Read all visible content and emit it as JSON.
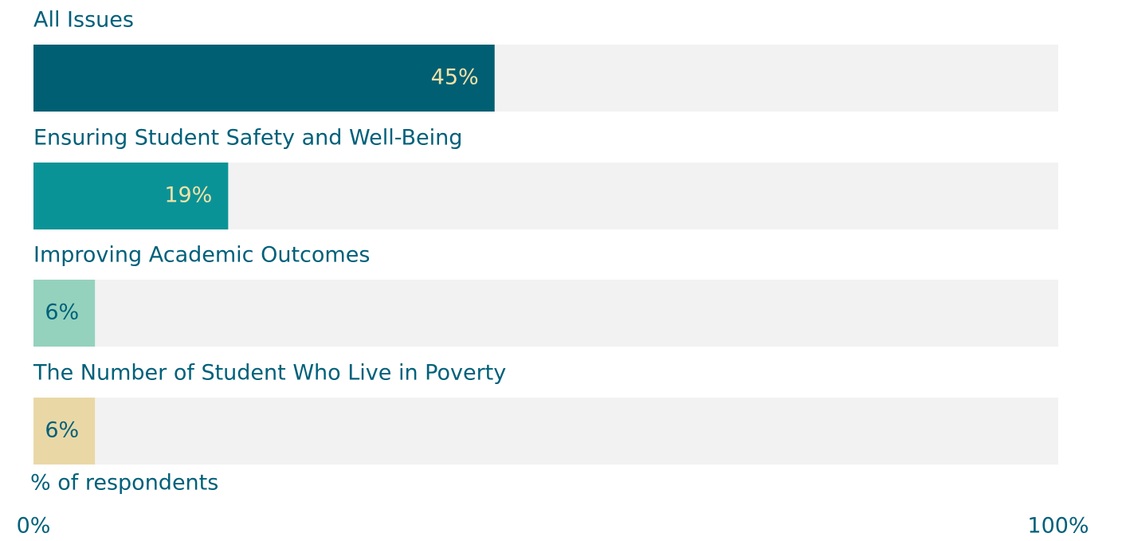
{
  "chart_data": {
    "type": "bar",
    "orientation": "horizontal",
    "categories": [
      "All Issues",
      "Ensuring Student Safety and Well-Being",
      "Improving Academic Outcomes",
      "The Number of Student Who Live in Poverty"
    ],
    "values": [
      45,
      19,
      6,
      6
    ],
    "value_labels": [
      "45%",
      "19%",
      "6%",
      "6%"
    ],
    "colors": [
      "#005f73",
      "#0a9396",
      "#94d2bd",
      "#e9d8a6"
    ],
    "value_label_colors": [
      "#f0e2a8",
      "#f0e2a8",
      "#00607a",
      "#00607a"
    ],
    "xlabel": "% of respondents",
    "xlim": [
      0,
      100
    ],
    "xticks": [
      {
        "value": 0,
        "label": "0%"
      },
      {
        "value": 100,
        "label": "100%"
      }
    ]
  }
}
